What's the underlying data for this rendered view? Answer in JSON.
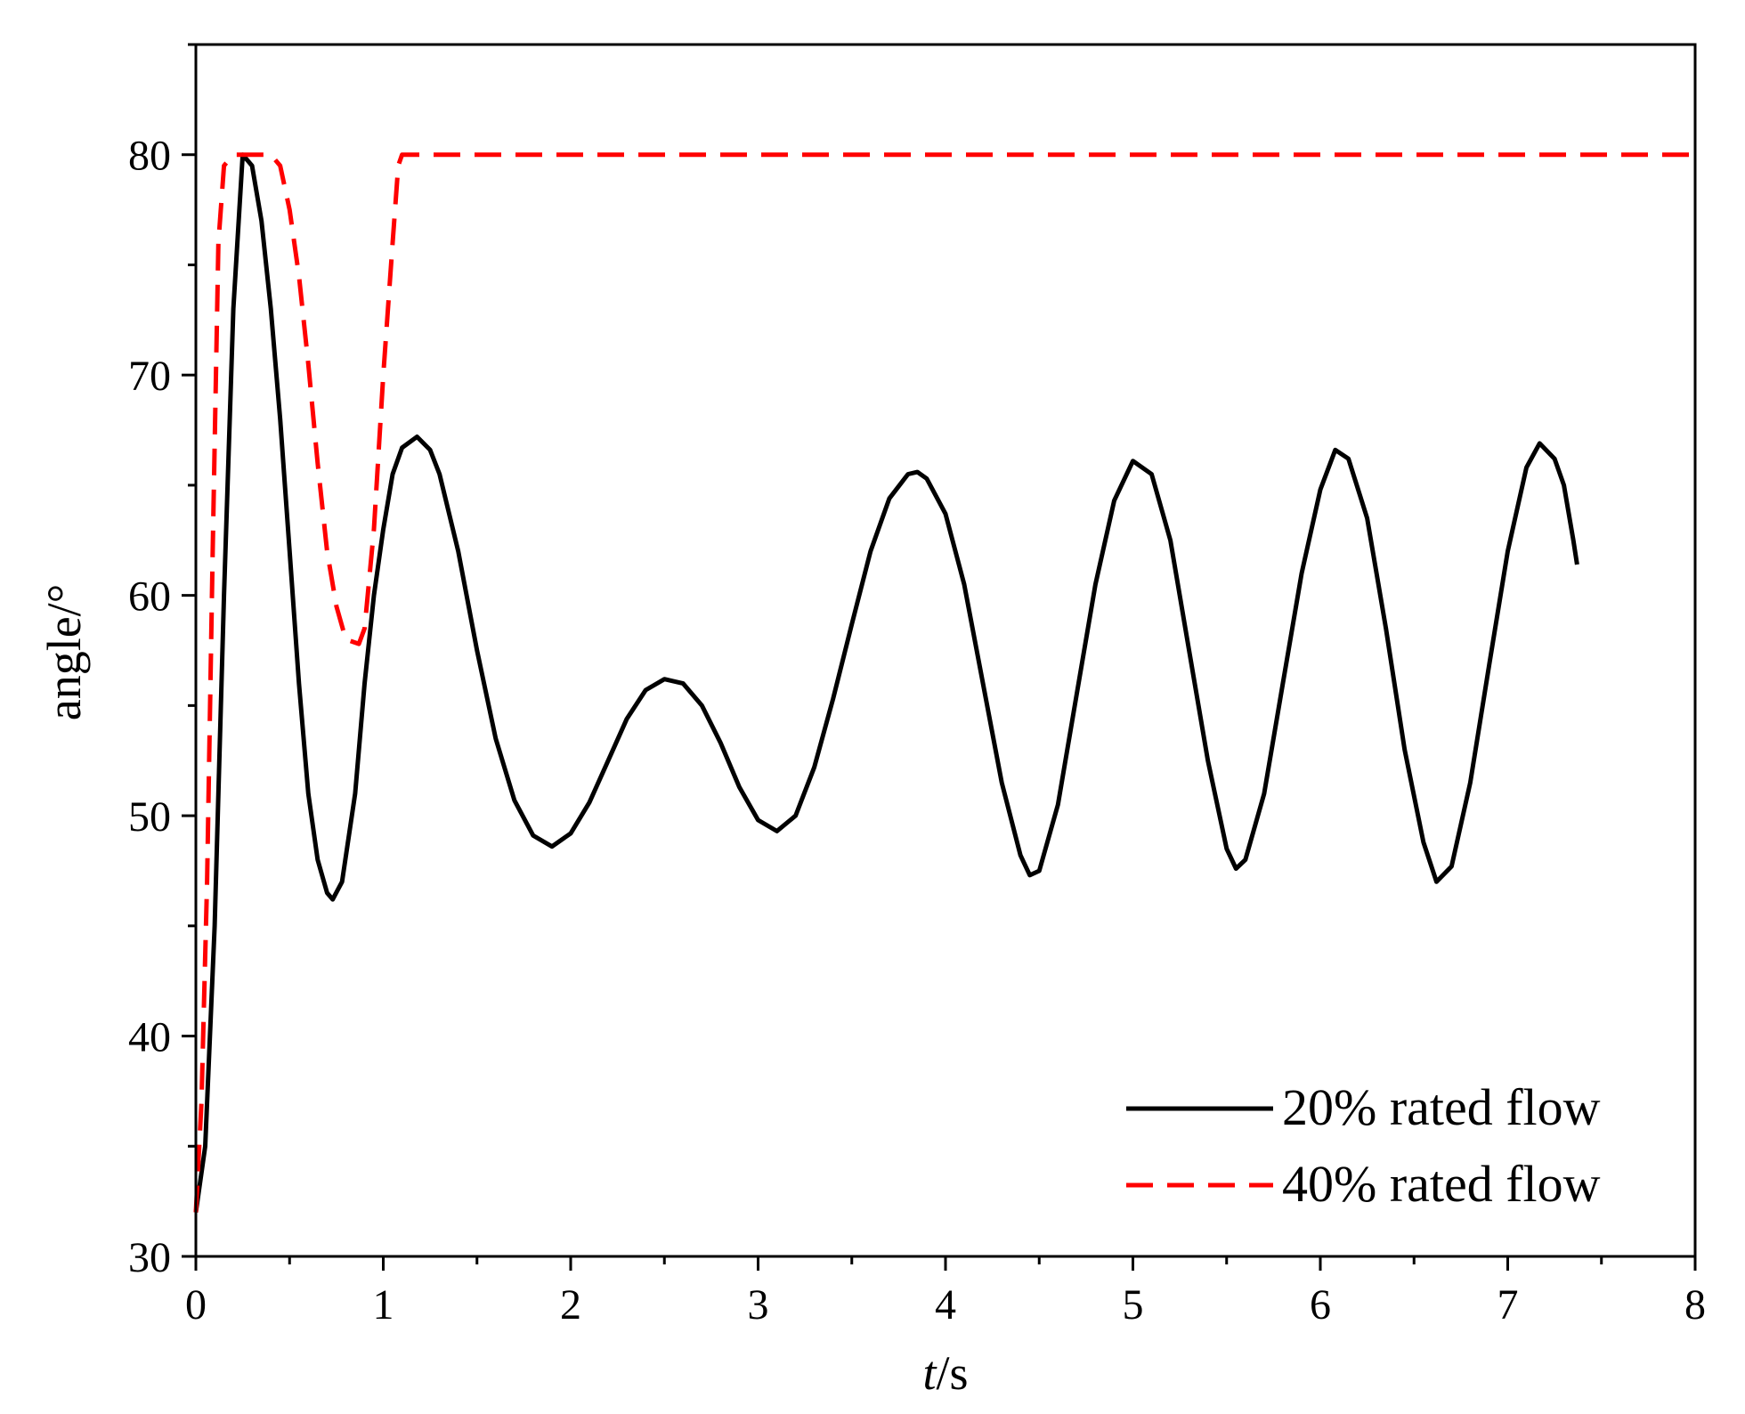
{
  "chart_data": {
    "type": "line",
    "title": "",
    "xlabel_italic": "t",
    "xlabel_rest": "/s",
    "ylabel": "angle/°",
    "xlim": [
      0,
      8
    ],
    "ylim": [
      30,
      85
    ],
    "x_ticks": [
      "0",
      "1",
      "2",
      "3",
      "4",
      "5",
      "6",
      "7",
      "8"
    ],
    "y_ticks": [
      "30",
      "40",
      "50",
      "60",
      "70",
      "80"
    ],
    "grid": false,
    "legend_position": "bottom-right",
    "series": [
      {
        "name": "20% rated flow",
        "color": "#000000",
        "style": "solid",
        "points": [
          [
            0,
            32
          ],
          [
            0.05,
            35
          ],
          [
            0.1,
            45
          ],
          [
            0.15,
            60
          ],
          [
            0.2,
            73
          ],
          [
            0.25,
            80
          ],
          [
            0.3,
            79.5
          ],
          [
            0.35,
            77
          ],
          [
            0.4,
            73
          ],
          [
            0.45,
            68
          ],
          [
            0.5,
            62
          ],
          [
            0.55,
            56
          ],
          [
            0.6,
            51
          ],
          [
            0.65,
            48
          ],
          [
            0.7,
            46.5
          ],
          [
            0.73,
            46.2
          ],
          [
            0.78,
            47
          ],
          [
            0.85,
            51
          ],
          [
            0.9,
            56
          ],
          [
            0.95,
            60
          ],
          [
            1.0,
            63
          ],
          [
            1.05,
            65.5
          ],
          [
            1.1,
            66.7
          ],
          [
            1.18,
            67.2
          ],
          [
            1.25,
            66.6
          ],
          [
            1.3,
            65.5
          ],
          [
            1.4,
            62
          ],
          [
            1.5,
            57.5
          ],
          [
            1.6,
            53.5
          ],
          [
            1.7,
            50.7
          ],
          [
            1.8,
            49.1
          ],
          [
            1.9,
            48.6
          ],
          [
            2.0,
            49.2
          ],
          [
            2.1,
            50.6
          ],
          [
            2.2,
            52.5
          ],
          [
            2.3,
            54.4
          ],
          [
            2.4,
            55.7
          ],
          [
            2.5,
            56.2
          ],
          [
            2.6,
            56
          ],
          [
            2.7,
            55
          ],
          [
            2.8,
            53.3
          ],
          [
            2.9,
            51.3
          ],
          [
            3.0,
            49.8
          ],
          [
            3.1,
            49.3
          ],
          [
            3.2,
            50
          ],
          [
            3.3,
            52.2
          ],
          [
            3.4,
            55.3
          ],
          [
            3.5,
            58.7
          ],
          [
            3.6,
            62
          ],
          [
            3.7,
            64.4
          ],
          [
            3.8,
            65.5
          ],
          [
            3.85,
            65.6
          ],
          [
            3.9,
            65.3
          ],
          [
            4.0,
            63.7
          ],
          [
            4.1,
            60.5
          ],
          [
            4.2,
            56
          ],
          [
            4.3,
            51.5
          ],
          [
            4.4,
            48.2
          ],
          [
            4.45,
            47.3
          ],
          [
            4.5,
            47.5
          ],
          [
            4.6,
            50.5
          ],
          [
            4.7,
            55.5
          ],
          [
            4.8,
            60.5
          ],
          [
            4.9,
            64.3
          ],
          [
            5.0,
            66.1
          ],
          [
            5.1,
            65.5
          ],
          [
            5.2,
            62.5
          ],
          [
            5.3,
            57.5
          ],
          [
            5.4,
            52.5
          ],
          [
            5.5,
            48.5
          ],
          [
            5.55,
            47.6
          ],
          [
            5.6,
            48
          ],
          [
            5.7,
            51
          ],
          [
            5.8,
            56
          ],
          [
            5.9,
            61
          ],
          [
            6.0,
            64.8
          ],
          [
            6.08,
            66.6
          ],
          [
            6.15,
            66.2
          ],
          [
            6.25,
            63.5
          ],
          [
            6.35,
            58.5
          ],
          [
            6.45,
            53
          ],
          [
            6.55,
            48.8
          ],
          [
            6.62,
            47
          ],
          [
            6.7,
            47.7
          ],
          [
            6.8,
            51.5
          ],
          [
            6.9,
            56.8
          ],
          [
            7.0,
            62
          ],
          [
            7.1,
            65.8
          ],
          [
            7.17,
            66.9
          ],
          [
            7.25,
            66.2
          ],
          [
            7.3,
            65
          ],
          [
            7.35,
            62.5
          ],
          [
            7.37,
            61.4
          ]
        ]
      },
      {
        "name": "40% rated flow",
        "color": "#ff0000",
        "style": "dashed",
        "points": [
          [
            0,
            32
          ],
          [
            0.03,
            37
          ],
          [
            0.06,
            47
          ],
          [
            0.09,
            62
          ],
          [
            0.12,
            76
          ],
          [
            0.15,
            79.5
          ],
          [
            0.2,
            80
          ],
          [
            0.4,
            80
          ],
          [
            0.45,
            79.5
          ],
          [
            0.5,
            77.5
          ],
          [
            0.55,
            74.5
          ],
          [
            0.6,
            70.5
          ],
          [
            0.65,
            66
          ],
          [
            0.7,
            62
          ],
          [
            0.75,
            59.5
          ],
          [
            0.8,
            58
          ],
          [
            0.87,
            57.8
          ],
          [
            0.9,
            58.5
          ],
          [
            0.95,
            63
          ],
          [
            1.0,
            70
          ],
          [
            1.05,
            76
          ],
          [
            1.08,
            79.5
          ],
          [
            1.1,
            80
          ],
          [
            8.0,
            80
          ]
        ]
      }
    ]
  }
}
